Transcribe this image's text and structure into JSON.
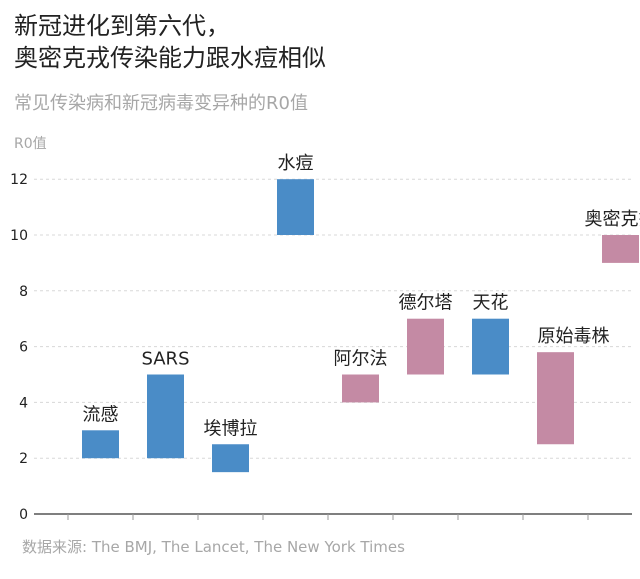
{
  "title_line1": "新冠进化到第六代，",
  "title_line2": "奥密克戎传染能力跟水痘相似",
  "subtitle": "常见传染病和新冠病毒变异种的R0值",
  "source": "数据来源: The BMJ, The Lancet, The New York Times",
  "colors": {
    "blue": "#4a8cc7",
    "pink": "#c48aa4",
    "grid": "#d8d8d8",
    "axis": "#333333"
  },
  "chart_data": {
    "type": "bar",
    "subtype": "floating-range",
    "ylabel": "R0值",
    "ylim": [
      0,
      13
    ],
    "yticks": [
      0,
      2,
      4,
      6,
      8,
      10,
      12
    ],
    "grid": true,
    "categories": [
      "流感",
      "SARS",
      "埃博拉",
      "水痘",
      "阿尔法",
      "德尔塔",
      "天花",
      "原始毒株",
      "奥密克戎"
    ],
    "ranges": [
      [
        2,
        3
      ],
      [
        2,
        5
      ],
      [
        1.5,
        2.5
      ],
      [
        10,
        12
      ],
      [
        4,
        5
      ],
      [
        5,
        7
      ],
      [
        5,
        7
      ],
      [
        2.5,
        5.8
      ],
      [
        9,
        10
      ]
    ],
    "groups": [
      "disease",
      "disease",
      "disease",
      "disease",
      "covid",
      "covid",
      "disease",
      "covid",
      "covid"
    ],
    "group_colors": {
      "disease": "#4a8cc7",
      "covid": "#c48aa4"
    }
  }
}
